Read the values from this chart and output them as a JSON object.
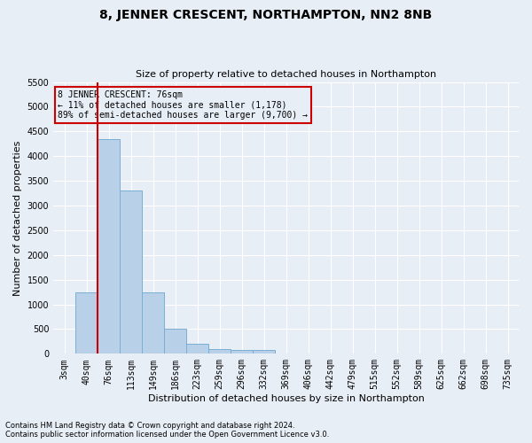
{
  "title": "8, JENNER CRESCENT, NORTHAMPTON, NN2 8NB",
  "subtitle": "Size of property relative to detached houses in Northampton",
  "xlabel": "Distribution of detached houses by size in Northampton",
  "ylabel": "Number of detached properties",
  "footnote1": "Contains HM Land Registry data © Crown copyright and database right 2024.",
  "footnote2": "Contains public sector information licensed under the Open Government Licence v3.0.",
  "annotation_line1": "8 JENNER CRESCENT: 76sqm",
  "annotation_line2": "← 11% of detached houses are smaller (1,178)",
  "annotation_line3": "89% of semi-detached houses are larger (9,700) →",
  "bins": [
    "3sqm",
    "40sqm",
    "76sqm",
    "113sqm",
    "149sqm",
    "186sqm",
    "223sqm",
    "259sqm",
    "296sqm",
    "332sqm",
    "369sqm",
    "406sqm",
    "442sqm",
    "479sqm",
    "515sqm",
    "552sqm",
    "589sqm",
    "625sqm",
    "662sqm",
    "698sqm",
    "735sqm"
  ],
  "values": [
    0,
    1250,
    4350,
    3300,
    1250,
    500,
    200,
    100,
    75,
    75,
    0,
    0,
    0,
    0,
    0,
    0,
    0,
    0,
    0,
    0,
    0
  ],
  "bar_color": "#b8d0e8",
  "bar_edge_color": "#7aaed4",
  "vline_color": "#cc0000",
  "ylim": [
    0,
    5500
  ],
  "yticks": [
    0,
    500,
    1000,
    1500,
    2000,
    2500,
    3000,
    3500,
    4000,
    4500,
    5000,
    5500
  ],
  "annotation_box_color": "#cc0000",
  "background_color": "#e8eef6",
  "grid_color": "#ffffff",
  "title_fontsize": 10,
  "subtitle_fontsize": 8,
  "ylabel_fontsize": 8,
  "xlabel_fontsize": 8,
  "tick_fontsize": 7,
  "annotation_fontsize": 7,
  "footnote_fontsize": 6
}
